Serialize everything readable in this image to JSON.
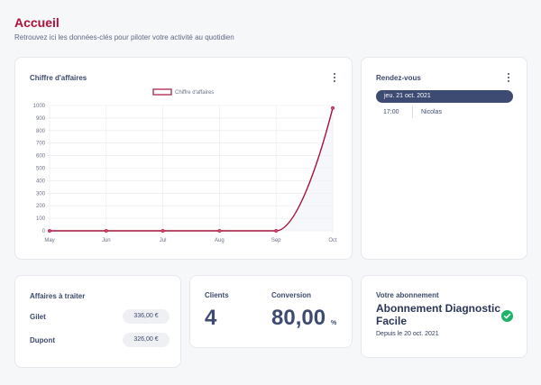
{
  "page": {
    "title": "Accueil",
    "subtitle": "Retrouvez ici les données-clés pour piloter votre activité au quotidien"
  },
  "revenue_card": {
    "title": "Chiffre d'affaires",
    "menu_icon": "kebab-menu-icon"
  },
  "chart_data": {
    "type": "line",
    "categories": [
      "May",
      "Jun",
      "Jul",
      "Aug",
      "Sep",
      "Oct"
    ],
    "series": [
      {
        "name": "Chiffre d'affaires",
        "values": [
          0,
          0,
          0,
          0,
          0,
          980
        ]
      }
    ],
    "yticks": [
      0,
      100,
      200,
      300,
      400,
      500,
      600,
      700,
      800,
      900,
      1000
    ],
    "ylim": [
      0,
      1000
    ],
    "legend_position": "top",
    "grid": true,
    "line_color": "#a31238",
    "title": "",
    "xlabel": "",
    "ylabel": ""
  },
  "agenda_card": {
    "title": "Rendez-vous",
    "date": "jeu. 21 oct. 2021",
    "appointments": [
      {
        "time": "17:00",
        "name": "Nicolas"
      }
    ]
  },
  "affaires_card": {
    "title": "Affaires à traiter",
    "items": [
      {
        "name": "Gilet",
        "amount": "336,00 €"
      },
      {
        "name": "Dupont",
        "amount": "326,00 €"
      }
    ]
  },
  "kpi_card": {
    "clients_label": "Clients",
    "clients_value": "4",
    "conversion_label": "Conversion",
    "conversion_value": "80,00",
    "conversion_unit": "%"
  },
  "subscription_card": {
    "label": "Votre abonnement",
    "name": "Abonnement Diagnostic Facile",
    "since": "Depuis le 20 oct. 2021",
    "status_icon": "check-circle-icon",
    "status_color": "#1fb36a"
  }
}
